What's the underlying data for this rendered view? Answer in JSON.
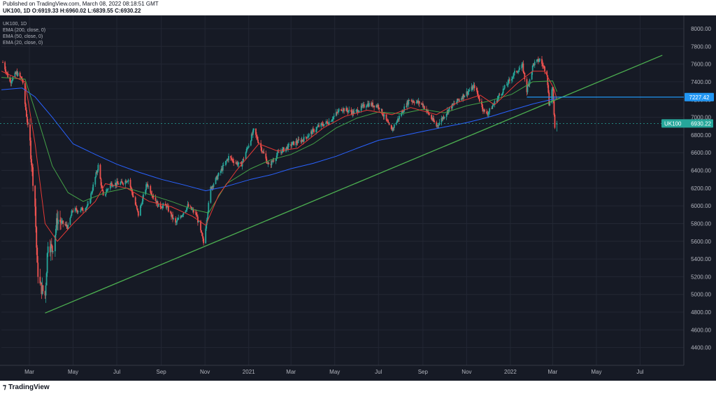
{
  "header": {
    "published": "Published on TradingView.com, March 08, 2022 08:18:51 GMT",
    "ohlc": "UK100, 1D O:6919.33 H:6960.02 L:6839.55 C:6930.22"
  },
  "legend": {
    "symbol": "UK100, 1D",
    "ema200": "EMA (200, close, 0)",
    "ema50": "EMA (50, close, 0)",
    "ema20": "EMA (20, close, 0)"
  },
  "footer": {
    "brand": "TradingView",
    "logo_icon": "tradingview-logo-icon"
  },
  "colors": {
    "background": "#161a25",
    "up": "#26a69a",
    "down": "#ef5350",
    "ema200": "#2962ff",
    "ema50": "#43a047",
    "ema20": "#e53935",
    "trendline": "#4caf50",
    "level_line": "#2196f3",
    "price_badge": "#26a69a"
  },
  "chart_data": {
    "type": "candlestick",
    "symbol": "UK100",
    "interval": "1D",
    "last": {
      "open": 6919.33,
      "high": 6960.02,
      "low": 6839.55,
      "close": 6930.22,
      "label": "UK100",
      "value_label": "6930.22"
    },
    "horizontal_level": {
      "value": 7227.42,
      "label": "7227.42",
      "from": "2022-01-24"
    },
    "trendline": {
      "from": {
        "date": "2020-03-23",
        "value": 4790
      },
      "to": {
        "date": "2022-08-01",
        "value": 7700
      }
    },
    "ylim": [
      4200,
      8150
    ],
    "yticks": [
      4400,
      4600,
      4800,
      5000,
      5200,
      5400,
      5600,
      5800,
      6000,
      6200,
      6400,
      6600,
      6800,
      7000,
      7200,
      7400,
      7600,
      7800,
      8000
    ],
    "ytick_labels": [
      "4400.00",
      "4600.00",
      "4800.00",
      "5000.00",
      "5200.00",
      "5400.00",
      "5600.00",
      "5800.00",
      "6000.00",
      "6200.00",
      "6400.00",
      "6600.00",
      "6800.00",
      "7000.00",
      "7200.00",
      "7400.00",
      "7600.00",
      "7800.00",
      "8000.00"
    ],
    "xlim": [
      "2020-01-22",
      "2022-08-31"
    ],
    "xticks": [
      {
        "date": "2020-03-01",
        "label": "Mar"
      },
      {
        "date": "2020-05-01",
        "label": "May"
      },
      {
        "date": "2020-07-01",
        "label": "Jul"
      },
      {
        "date": "2020-09-01",
        "label": "Sep"
      },
      {
        "date": "2020-11-01",
        "label": "Nov"
      },
      {
        "date": "2021-01-01",
        "label": "2021"
      },
      {
        "date": "2021-03-01",
        "label": "Mar"
      },
      {
        "date": "2021-05-01",
        "label": "May"
      },
      {
        "date": "2021-07-01",
        "label": "Jul"
      },
      {
        "date": "2021-09-01",
        "label": "Sep"
      },
      {
        "date": "2021-11-01",
        "label": "Nov"
      },
      {
        "date": "2022-01-01",
        "label": "2022"
      },
      {
        "date": "2022-03-01",
        "label": "Mar"
      },
      {
        "date": "2022-05-01",
        "label": "May"
      },
      {
        "date": "2022-07-01",
        "label": "Jul"
      }
    ],
    "price_path": [
      [
        "2020-01-24",
        7620
      ],
      [
        "2020-02-03",
        7400
      ],
      [
        "2020-02-12",
        7500
      ],
      [
        "2020-02-20",
        7430
      ],
      [
        "2020-02-24",
        7150
      ],
      [
        "2020-03-02",
        6700
      ],
      [
        "2020-03-09",
        6000
      ],
      [
        "2020-03-12",
        5300
      ],
      [
        "2020-03-16",
        5100
      ],
      [
        "2020-03-23",
        4990
      ],
      [
        "2020-03-27",
        5600
      ],
      [
        "2020-04-02",
        5500
      ],
      [
        "2020-04-09",
        5850
      ],
      [
        "2020-04-17",
        5800
      ],
      [
        "2020-04-24",
        5760
      ],
      [
        "2020-04-30",
        5950
      ],
      [
        "2020-05-11",
        5950
      ],
      [
        "2020-05-22",
        6000
      ],
      [
        "2020-06-05",
        6450
      ],
      [
        "2020-06-12",
        6100
      ],
      [
        "2020-06-22",
        6250
      ],
      [
        "2020-07-06",
        6250
      ],
      [
        "2020-07-17",
        6300
      ],
      [
        "2020-07-31",
        5900
      ],
      [
        "2020-08-12",
        6250
      ],
      [
        "2020-08-28",
        6000
      ],
      [
        "2020-09-08",
        6000
      ],
      [
        "2020-09-21",
        5800
      ],
      [
        "2020-10-08",
        6000
      ],
      [
        "2020-10-20",
        5900
      ],
      [
        "2020-10-30",
        5580
      ],
      [
        "2020-11-09",
        6200
      ],
      [
        "2020-11-20",
        6350
      ],
      [
        "2020-12-04",
        6550
      ],
      [
        "2020-12-21",
        6450
      ],
      [
        "2021-01-08",
        6850
      ],
      [
        "2021-01-29",
        6450
      ],
      [
        "2021-02-12",
        6600
      ],
      [
        "2021-03-03",
        6700
      ],
      [
        "2021-03-18",
        6750
      ],
      [
        "2021-04-09",
        6900
      ],
      [
        "2021-04-23",
        6950
      ],
      [
        "2021-05-10",
        7100
      ],
      [
        "2021-05-28",
        7050
      ],
      [
        "2021-06-15",
        7150
      ],
      [
        "2021-07-01",
        7130
      ],
      [
        "2021-07-19",
        6850
      ],
      [
        "2021-08-13",
        7200
      ],
      [
        "2021-08-31",
        7150
      ],
      [
        "2021-09-20",
        6900
      ],
      [
        "2021-10-08",
        7100
      ],
      [
        "2021-10-28",
        7250
      ],
      [
        "2021-11-12",
        7350
      ],
      [
        "2021-11-26",
        7050
      ],
      [
        "2021-12-01",
        7050
      ],
      [
        "2021-12-17",
        7250
      ],
      [
        "2022-01-07",
        7500
      ],
      [
        "2022-01-18",
        7580
      ],
      [
        "2022-01-24",
        7300
      ],
      [
        "2022-02-02",
        7600
      ],
      [
        "2022-02-11",
        7650
      ],
      [
        "2022-02-21",
        7500
      ],
      [
        "2022-02-24",
        7150
      ],
      [
        "2022-03-01",
        7350
      ],
      [
        "2022-03-03",
        7000
      ],
      [
        "2022-03-04",
        6870
      ],
      [
        "2022-03-07",
        6930
      ]
    ],
    "ema200": [
      [
        "2020-01-22",
        7310
      ],
      [
        "2020-02-20",
        7330
      ],
      [
        "2020-03-09",
        7230
      ],
      [
        "2020-04-02",
        7000
      ],
      [
        "2020-05-01",
        6700
      ],
      [
        "2020-06-01",
        6580
      ],
      [
        "2020-07-01",
        6470
      ],
      [
        "2020-08-01",
        6380
      ],
      [
        "2020-09-01",
        6300
      ],
      [
        "2020-10-01",
        6240
      ],
      [
        "2020-11-02",
        6170
      ],
      [
        "2020-12-01",
        6220
      ],
      [
        "2021-01-04",
        6300
      ],
      [
        "2021-02-01",
        6350
      ],
      [
        "2021-03-01",
        6420
      ],
      [
        "2021-04-01",
        6480
      ],
      [
        "2021-05-03",
        6560
      ],
      [
        "2021-06-01",
        6650
      ],
      [
        "2021-07-01",
        6740
      ],
      [
        "2021-08-02",
        6790
      ],
      [
        "2021-09-01",
        6840
      ],
      [
        "2021-10-01",
        6890
      ],
      [
        "2021-11-01",
        6940
      ],
      [
        "2021-12-01",
        7000
      ],
      [
        "2022-01-03",
        7080
      ],
      [
        "2022-02-01",
        7150
      ],
      [
        "2022-03-07",
        7215
      ]
    ],
    "ema50": [
      [
        "2020-01-22",
        7450
      ],
      [
        "2020-02-24",
        7430
      ],
      [
        "2020-03-16",
        6900
      ],
      [
        "2020-04-02",
        6450
      ],
      [
        "2020-04-24",
        6150
      ],
      [
        "2020-05-15",
        6050
      ],
      [
        "2020-06-15",
        6150
      ],
      [
        "2020-07-15",
        6200
      ],
      [
        "2020-08-15",
        6130
      ],
      [
        "2020-09-15",
        6050
      ],
      [
        "2020-10-15",
        5960
      ],
      [
        "2020-11-06",
        5920
      ],
      [
        "2020-12-01",
        6250
      ],
      [
        "2021-01-04",
        6420
      ],
      [
        "2021-02-01",
        6520
      ],
      [
        "2021-03-01",
        6580
      ],
      [
        "2021-04-01",
        6700
      ],
      [
        "2021-05-03",
        6880
      ],
      [
        "2021-06-01",
        6990
      ],
      [
        "2021-07-01",
        7060
      ],
      [
        "2021-08-02",
        7040
      ],
      [
        "2021-09-01",
        7090
      ],
      [
        "2021-10-01",
        7050
      ],
      [
        "2021-11-01",
        7130
      ],
      [
        "2021-12-01",
        7180
      ],
      [
        "2022-01-03",
        7260
      ],
      [
        "2022-02-01",
        7400
      ],
      [
        "2022-03-01",
        7410
      ],
      [
        "2022-03-07",
        7290
      ]
    ],
    "ema20": [
      [
        "2020-01-22",
        7520
      ],
      [
        "2020-02-24",
        7400
      ],
      [
        "2020-03-09",
        6700
      ],
      [
        "2020-03-23",
        5800
      ],
      [
        "2020-04-09",
        5600
      ],
      [
        "2020-05-01",
        5800
      ],
      [
        "2020-06-01",
        6050
      ],
      [
        "2020-06-15",
        6250
      ],
      [
        "2020-07-15",
        6200
      ],
      [
        "2020-08-15",
        6050
      ],
      [
        "2020-09-15",
        5990
      ],
      [
        "2020-10-15",
        5880
      ],
      [
        "2020-11-02",
        5780
      ],
      [
        "2020-11-20",
        6120
      ],
      [
        "2020-12-15",
        6400
      ],
      [
        "2021-01-15",
        6700
      ],
      [
        "2021-02-10",
        6620
      ],
      [
        "2021-03-10",
        6650
      ],
      [
        "2021-04-15",
        6880
      ],
      [
        "2021-05-15",
        7010
      ],
      [
        "2021-06-15",
        7080
      ],
      [
        "2021-07-20",
        7030
      ],
      [
        "2021-08-15",
        7110
      ],
      [
        "2021-09-20",
        7030
      ],
      [
        "2021-10-20",
        7170
      ],
      [
        "2021-11-20",
        7250
      ],
      [
        "2021-12-10",
        7140
      ],
      [
        "2022-01-10",
        7380
      ],
      [
        "2022-02-01",
        7520
      ],
      [
        "2022-02-18",
        7520
      ],
      [
        "2022-03-03",
        7320
      ],
      [
        "2022-03-07",
        7200
      ]
    ]
  }
}
